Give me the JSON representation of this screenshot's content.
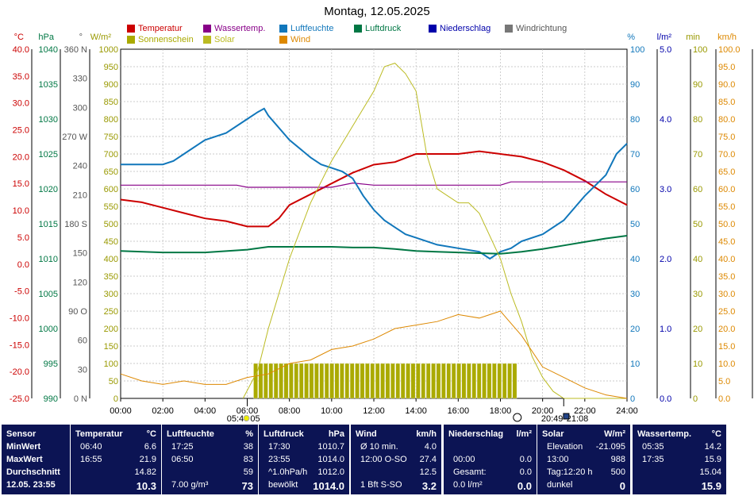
{
  "title": "Montag, 12.05.2025",
  "legend": [
    {
      "label": "Temperatur",
      "color": "#cc0000"
    },
    {
      "label": "Wassertemp.",
      "color": "#880088"
    },
    {
      "label": "Luftfeuchte",
      "color": "#1177bb"
    },
    {
      "label": "Luftdruck",
      "color": "#007744"
    },
    {
      "label": "Niederschlag",
      "color": "#0000aa"
    },
    {
      "label": "Windrichtung",
      "color": "#777777"
    },
    {
      "label": "Sonnenschein",
      "color": "#aaaa00"
    },
    {
      "label": "Solar",
      "color": "#bbbb22"
    },
    {
      "label": "Wind",
      "color": "#dd8800"
    }
  ],
  "axes": {
    "temp": {
      "unit": "°C",
      "ticks": [
        "40.0",
        "35.0",
        "30.0",
        "25.0",
        "20.0",
        "15.0",
        "10.0",
        "5.0",
        "0.0",
        "-5.0",
        "-10.0",
        "-15.0",
        "-20.0",
        "-25.0"
      ],
      "color": "#cc0000"
    },
    "press": {
      "unit": "hPa",
      "ticks": [
        "1040",
        "1035",
        "1030",
        "1025",
        "1020",
        "1015",
        "1010",
        "1005",
        "1000",
        "995",
        "990"
      ],
      "color": "#007744"
    },
    "dir": {
      "unit": "°",
      "ticks": [
        "360 N",
        "330",
        "300",
        "270 W",
        "240",
        "210",
        "180 S",
        "150",
        "120",
        "90 O",
        "60",
        "30",
        "0 N"
      ],
      "color": "#555555"
    },
    "solar": {
      "unit": "W/m²",
      "ticks": [
        "1000",
        "950",
        "900",
        "850",
        "800",
        "750",
        "700",
        "650",
        "600",
        "550",
        "500",
        "450",
        "400",
        "350",
        "300",
        "250",
        "200",
        "150",
        "100",
        "50",
        "0"
      ],
      "color": "#999900"
    },
    "hum": {
      "unit": "%",
      "ticks": [
        "100",
        "90",
        "80",
        "70",
        "60",
        "50",
        "40",
        "30",
        "20",
        "10",
        "0"
      ],
      "color": "#1177bb"
    },
    "rain": {
      "unit": "l/m²",
      "ticks": [
        "5.0",
        "4.0",
        "3.0",
        "2.0",
        "1.0",
        "0.0"
      ],
      "color": "#0000aa"
    },
    "min": {
      "unit": "min",
      "ticks": [
        "100",
        "90",
        "80",
        "70",
        "60",
        "50",
        "40",
        "30",
        "20",
        "10",
        "0"
      ],
      "color": "#999900"
    },
    "wind": {
      "unit": "km/h",
      "ticks": [
        "100.0",
        "95.0",
        "90.0",
        "85.0",
        "80.0",
        "75.0",
        "70.0",
        "65.0",
        "60.0",
        "55.0",
        "50.0",
        "45.0",
        "40.0",
        "35.0",
        "30.0",
        "25.0",
        "20.0",
        "15.0",
        "10.0",
        "5.0",
        "0.0"
      ],
      "color": "#dd8800"
    }
  },
  "xticks": [
    "00:00",
    "02:00",
    "04:00",
    "06:00",
    "08:00",
    "10:00",
    "12:00",
    "14:00",
    "16:00",
    "18:00",
    "20:00",
    "22:00",
    "24:00"
  ],
  "sun_markers": {
    "sunrise": "05:46",
    "sunrise2": "05",
    "sunset": "20:49",
    "sunset2": "21:08"
  },
  "chart_data": {
    "type": "line",
    "title": "Montag, 12.05.2025",
    "x_unit": "hour",
    "xlim": [
      0,
      24
    ],
    "series": [
      {
        "name": "Temperatur",
        "unit": "°C",
        "x": [
          0,
          1,
          2,
          3,
          4,
          5,
          6,
          7,
          7.5,
          8,
          9,
          10,
          11,
          12,
          13,
          14,
          15,
          16,
          17,
          18,
          19,
          20,
          21,
          22,
          23,
          24
        ],
        "values": [
          12,
          11.5,
          10.5,
          9.5,
          8.5,
          8,
          7,
          7,
          8.5,
          11,
          13,
          15,
          17,
          18.5,
          19,
          20.5,
          20.5,
          20.5,
          21,
          20.5,
          20,
          19,
          17.5,
          15.5,
          13,
          11
        ]
      },
      {
        "name": "Wassertemp.",
        "unit": "°C",
        "x": [
          0,
          5.5,
          6,
          10,
          11,
          12,
          13,
          18,
          18.5,
          24
        ],
        "values": [
          14.7,
          14.7,
          14.3,
          14.3,
          15.1,
          14.7,
          14.7,
          14.7,
          15.3,
          15.3
        ]
      },
      {
        "name": "Luftfeuchte",
        "unit": "%",
        "x": [
          0,
          1,
          2,
          2.5,
          3,
          4,
          5,
          6,
          6.5,
          6.8,
          7,
          8,
          9,
          9.5,
          10,
          10.5,
          11,
          11.5,
          12,
          12.5,
          13,
          13.5,
          14,
          15,
          16,
          17,
          17.5,
          18,
          18.5,
          19,
          20,
          21,
          22,
          23,
          23.5,
          24
        ],
        "values": [
          67,
          67,
          67,
          68,
          70,
          74,
          76,
          80,
          82,
          83,
          81,
          74,
          69,
          67,
          66,
          65,
          63,
          58,
          54,
          51,
          49,
          47,
          46,
          44,
          43,
          42,
          40,
          42,
          43,
          45,
          47,
          51,
          58,
          64,
          70,
          73
        ]
      },
      {
        "name": "Luftdruck",
        "unit": "hPa",
        "x": [
          0,
          2,
          4,
          6,
          7,
          8,
          9,
          10,
          11,
          12,
          13,
          14,
          15,
          16,
          17,
          18,
          19,
          20,
          21,
          22,
          23,
          24
        ],
        "values": [
          1011.1,
          1010.9,
          1010.9,
          1011.3,
          1011.7,
          1011.7,
          1011.7,
          1011.7,
          1011.6,
          1011.6,
          1011.4,
          1011.1,
          1011.0,
          1010.9,
          1010.8,
          1010.7,
          1011.0,
          1011.4,
          1011.9,
          1012.4,
          1012.9,
          1013.3
        ]
      },
      {
        "name": "Solar",
        "unit": "W/m²",
        "x": [
          5.8,
          6.5,
          7,
          8,
          9,
          10,
          11,
          12,
          12.5,
          13,
          13.5,
          14,
          14.5,
          15,
          15.5,
          16,
          16.5,
          17,
          18,
          18.5,
          19,
          19.5,
          20,
          20.5,
          21,
          22,
          23,
          24
        ],
        "values": [
          0,
          80,
          200,
          400,
          560,
          680,
          780,
          880,
          950,
          960,
          930,
          880,
          700,
          600,
          580,
          560,
          560,
          530,
          400,
          300,
          220,
          120,
          60,
          20,
          0,
          0,
          0,
          0
        ]
      },
      {
        "name": "Wind",
        "unit": "km/h",
        "x": [
          0,
          1,
          2,
          3,
          4,
          5,
          6,
          7,
          8,
          9,
          10,
          11,
          12,
          13,
          14,
          15,
          16,
          17,
          18,
          19,
          20,
          21,
          22,
          23,
          24
        ],
        "values": [
          7,
          5,
          4,
          5,
          4,
          4,
          6,
          7,
          10,
          11,
          14,
          15,
          17,
          20,
          21,
          22,
          24,
          23,
          25,
          18,
          9,
          6,
          3,
          1,
          0
        ]
      }
    ],
    "bars": {
      "name": "Sonnenschein",
      "unit": "min",
      "x_start": 6.3,
      "x_end": 18.7,
      "value": 10
    },
    "ylim": {
      "temp": [
        -25,
        40
      ],
      "press": [
        990,
        1040
      ],
      "hum": [
        0,
        100
      ],
      "solar": [
        0,
        1000
      ],
      "wind": [
        0,
        100
      ]
    },
    "grid": true
  },
  "table": [
    {
      "header": "Sensor",
      "rows": [
        "MinWert",
        "MaxWert",
        "Durchschnitt",
        "12.05. 23:55"
      ]
    },
    {
      "header": "Temperatur",
      "unit": "°C",
      "rows": [
        [
          "06:40",
          "6.6"
        ],
        [
          "16:55",
          "21.9"
        ],
        [
          "",
          "14.82"
        ],
        [
          "",
          "10.3"
        ]
      ]
    },
    {
      "header": "Luftfeuchte",
      "unit": "%",
      "rows": [
        [
          "17:25",
          "38"
        ],
        [
          "06:50",
          "83"
        ],
        [
          "",
          "59"
        ],
        [
          "7.00 g/m³",
          "73"
        ]
      ]
    },
    {
      "header": "Luftdruck",
      "unit": "hPa",
      "rows": [
        [
          "17:30",
          "1010.7"
        ],
        [
          "23:55",
          "1014.0"
        ],
        [
          "^1.0hPa/h",
          "1012.0"
        ],
        [
          "bewölkt",
          "1014.0"
        ]
      ]
    },
    {
      "header": "Wind",
      "unit": "km/h",
      "rows": [
        [
          "Ø 10 min.",
          "4.0"
        ],
        [
          "12:00  O-SO",
          "27.4"
        ],
        [
          "",
          "12.5"
        ],
        [
          "1 Bft S-SO",
          "3.2"
        ]
      ]
    },
    {
      "header": "Niederschlag",
      "unit": "l/m²",
      "rows": [
        [
          "",
          ""
        ],
        [
          "00:00",
          "0.0"
        ],
        [
          "Gesamt:",
          "0.0"
        ],
        [
          "0.0 l/m²",
          "0.0"
        ]
      ]
    },
    {
      "header": "Solar",
      "unit": "W/m²",
      "rows": [
        [
          "Elevation",
          "-21.095"
        ],
        [
          "13:00",
          "988"
        ],
        [
          "Tag:12:20 h",
          "500"
        ],
        [
          "dunkel",
          "0"
        ]
      ]
    },
    {
      "header": "Wassertemp.",
      "unit": "°C",
      "rows": [
        [
          "05:35",
          "14.2"
        ],
        [
          "17:35",
          "15.9"
        ],
        [
          "",
          "15.04"
        ],
        [
          "",
          "15.9"
        ]
      ]
    }
  ]
}
